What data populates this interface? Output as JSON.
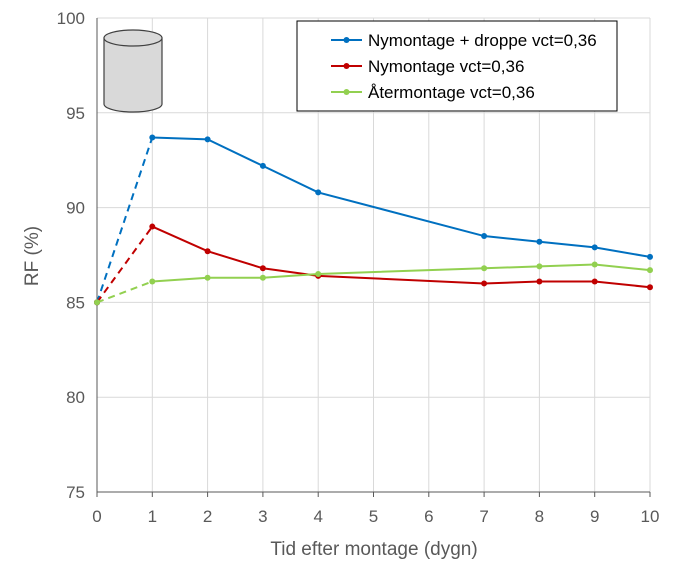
{
  "chart_data": {
    "type": "line",
    "title": "",
    "xlabel": "Tid efter montage (dygn)",
    "ylabel": "RF (%)",
    "xlim": [
      0,
      10
    ],
    "ylim": [
      75,
      100
    ],
    "x_ticks": [
      "0",
      "1",
      "2",
      "3",
      "4",
      "5",
      "6",
      "7",
      "8",
      "9",
      "10"
    ],
    "y_ticks": [
      "75",
      "80",
      "85",
      "90",
      "95",
      "100"
    ],
    "grid": true,
    "legend_position": "top-right",
    "dashed_segment": "first segment (day 0 to day 1) drawn dashed",
    "series": [
      {
        "name": "Nymontage + droppe vct=0,36",
        "color": "#0070C0",
        "x": [
          0,
          1,
          2,
          3,
          4,
          7,
          8,
          9,
          10
        ],
        "y": [
          85.0,
          93.7,
          93.6,
          92.2,
          90.8,
          88.5,
          88.2,
          87.9,
          87.4
        ]
      },
      {
        "name": "Nymontage vct=0,36",
        "color": "#C00000",
        "x": [
          0,
          1,
          2,
          3,
          4,
          7,
          8,
          9,
          10
        ],
        "y": [
          85.0,
          89.0,
          87.7,
          86.8,
          86.4,
          86.0,
          86.1,
          86.1,
          85.8
        ]
      },
      {
        "name": "Återmontage vct=0,36",
        "color": "#92D050",
        "x": [
          0,
          1,
          2,
          3,
          4,
          7,
          8,
          9,
          10
        ],
        "y": [
          85.0,
          86.1,
          86.3,
          86.3,
          86.5,
          86.8,
          86.9,
          87.0,
          86.7
        ]
      }
    ],
    "decoration": "cylinder-icon"
  }
}
